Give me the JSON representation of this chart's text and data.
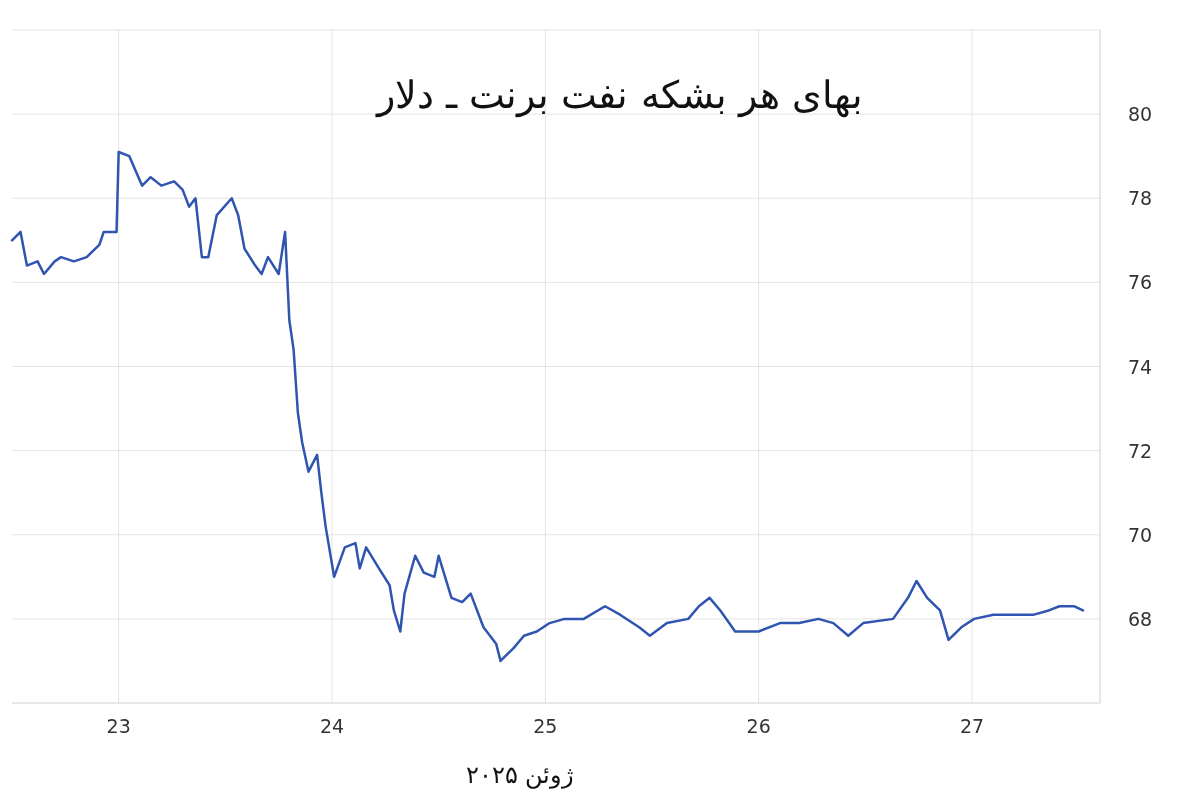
{
  "chart_data": {
    "type": "line",
    "title": "بهای هر بشکه نفت برنت ـ دلار",
    "xlabel": "ژوئن ۲۰۲۵",
    "xlim": [
      22.5,
      27.6
    ],
    "ylim": [
      66,
      82
    ],
    "xticks": [
      23,
      24,
      25,
      26,
      27
    ],
    "yticks": [
      68,
      70,
      72,
      74,
      76,
      78,
      80
    ],
    "grid": true,
    "x": [
      22.5,
      22.54,
      22.57,
      22.62,
      22.65,
      22.7,
      22.73,
      22.79,
      22.85,
      22.91,
      22.93,
      22.99,
      23.0,
      23.05,
      23.11,
      23.15,
      23.2,
      23.26,
      23.3,
      23.33,
      23.36,
      23.39,
      23.42,
      23.46,
      23.53,
      23.56,
      23.59,
      23.64,
      23.67,
      23.7,
      23.75,
      23.78,
      23.8,
      23.82,
      23.84,
      23.86,
      23.89,
      23.93,
      23.95,
      23.97,
      24.01,
      24.06,
      24.11,
      24.13,
      24.16,
      24.22,
      24.27,
      24.29,
      24.32,
      24.34,
      24.39,
      24.43,
      24.48,
      24.5,
      24.56,
      24.61,
      24.65,
      24.71,
      24.77,
      24.79,
      24.85,
      24.9,
      24.96,
      25.02,
      25.09,
      25.18,
      25.28,
      25.35,
      25.44,
      25.49,
      25.57,
      25.67,
      25.72,
      25.77,
      25.82,
      25.89,
      26.0,
      26.1,
      26.19,
      26.28,
      26.35,
      26.42,
      26.49,
      26.63,
      26.7,
      26.74,
      26.79,
      26.85,
      26.89,
      26.95,
      27.01,
      27.1,
      27.2,
      27.29,
      27.36,
      27.41,
      27.48,
      27.52
    ],
    "series": [
      {
        "color": "#2f55b0",
        "values": [
          77.0,
          77.2,
          76.4,
          76.5,
          76.2,
          76.5,
          76.6,
          76.5,
          76.6,
          76.9,
          77.2,
          77.2,
          79.1,
          79.0,
          78.3,
          78.5,
          78.3,
          78.4,
          78.2,
          77.8,
          78.0,
          76.6,
          76.6,
          77.6,
          78.0,
          77.6,
          76.8,
          76.4,
          76.2,
          76.6,
          76.2,
          77.2,
          75.1,
          74.4,
          72.9,
          72.2,
          71.5,
          71.9,
          71.0,
          70.2,
          69.0,
          69.7,
          69.8,
          69.2,
          69.7,
          69.2,
          68.8,
          68.2,
          67.7,
          68.6,
          69.5,
          69.1,
          69.0,
          69.5,
          68.5,
          68.4,
          68.6,
          67.8,
          67.4,
          67.0,
          67.3,
          67.6,
          67.7,
          67.9,
          68.0,
          68.0,
          68.3,
          68.1,
          67.8,
          67.6,
          67.9,
          68.0,
          68.3,
          68.5,
          68.2,
          67.7,
          67.7,
          67.9,
          67.9,
          68.0,
          67.9,
          67.6,
          67.9,
          68.0,
          68.5,
          68.9,
          68.5,
          68.2,
          67.5,
          67.8,
          68.0,
          68.1,
          68.1,
          68.1,
          68.2,
          68.3,
          68.3,
          68.2
        ]
      }
    ]
  }
}
